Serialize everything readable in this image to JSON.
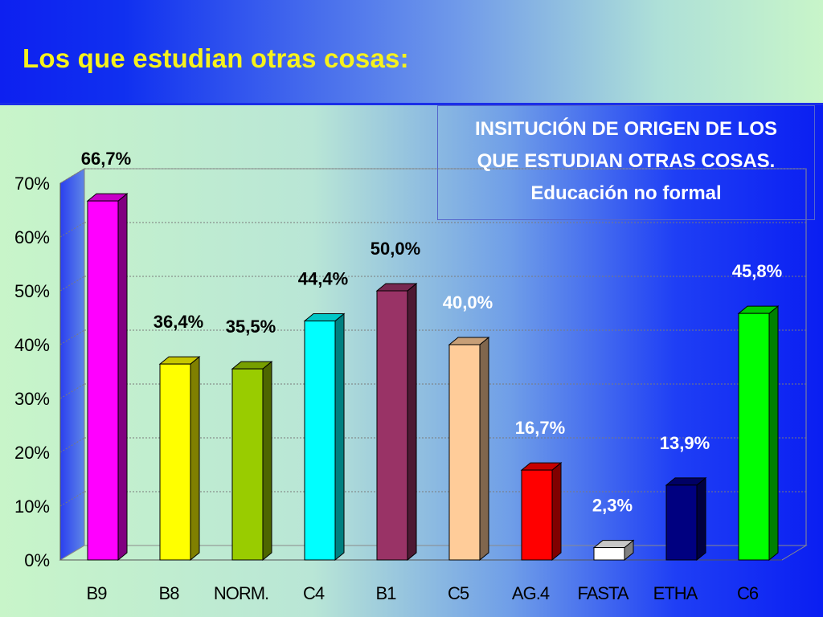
{
  "slide": {
    "title": "Los que estudian otras cosas:",
    "info_box": {
      "lines": [
        "INSITUCIÓN DE ORIGEN DE LOS",
        "QUE ESTUDIAN OTRAS COSAS.",
        "Educación no formal"
      ]
    }
  },
  "chart_data": {
    "type": "bar",
    "categories": [
      "B9",
      "B8",
      "NORM.",
      "C4",
      "B1",
      "C5",
      "AG.4",
      "FASTA",
      "ETHA",
      "C6"
    ],
    "values": [
      66.7,
      36.4,
      35.5,
      44.4,
      50.0,
      40.0,
      16.7,
      2.3,
      13.9,
      45.8
    ],
    "value_labels": [
      "66,7%",
      "36,4%",
      "35,5%",
      "44,4%",
      "50,0%",
      "40,0%",
      "16,7%",
      "2,3%",
      "13,9%",
      "45,8%"
    ],
    "ylim": [
      0,
      70
    ],
    "yticks": [
      "0%",
      "10%",
      "20%",
      "30%",
      "40%",
      "50%",
      "60%",
      "70%"
    ],
    "grid": true,
    "style": "3d",
    "colors": {
      "fronts": [
        "#ff00ff",
        "#ffff00",
        "#99cc00",
        "#00ffff",
        "#993366",
        "#ffcc99",
        "#ff0000",
        "#ffffff",
        "#000080",
        "#00ff00"
      ],
      "labels": [
        "#000000",
        "#000000",
        "#000000",
        "#000000",
        "#000000",
        "#ffffff",
        "#ffffff",
        "#ffffff",
        "#ffffff",
        "#ffffff"
      ]
    }
  }
}
